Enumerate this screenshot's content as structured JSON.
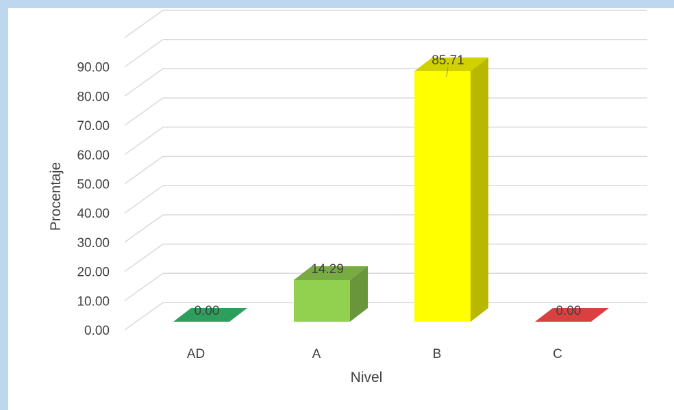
{
  "chart_data": {
    "type": "bar",
    "style": "3d-column",
    "title": "",
    "xlabel": "Nivel",
    "ylabel": "Procentaje",
    "categories": [
      "AD",
      "A",
      "B",
      "C"
    ],
    "values": [
      0.0,
      14.29,
      85.71,
      0.0
    ],
    "value_labels": [
      "0.00",
      "14.29",
      "85.71",
      "0.00"
    ],
    "yticks": [
      "0.00",
      "10.00",
      "20.00",
      "30.00",
      "40.00",
      "50.00",
      "60.00",
      "70.00",
      "80.00",
      "90.00"
    ],
    "ylim": [
      0,
      100
    ],
    "grid": true,
    "legend": "none",
    "colors": [
      "#2e9e5c",
      "#92d050",
      "#ffff00",
      "#d94040"
    ]
  }
}
